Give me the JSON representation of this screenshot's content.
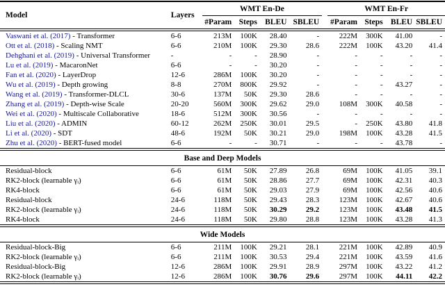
{
  "table": {
    "link_color": "#17178f",
    "header": {
      "col_model": "Model",
      "col_layers": "Layers",
      "group_ende": "WMT En-De",
      "group_enfr": "WMT En-Fr",
      "subcols": [
        "#Param",
        "Steps",
        "BLEU",
        "SBLEU"
      ]
    },
    "sections": [
      {
        "name": null,
        "rows": [
          {
            "cite": "Vaswani et al. (2017)",
            "rest": " - Transformer",
            "layers": "6-6",
            "vals": [
              "213M",
              "100K",
              "28.40",
              "-",
              "222M",
              "300K",
              "41.00",
              "-"
            ]
          },
          {
            "cite": "Ott et al. (2018)",
            "rest": " - Scaling NMT",
            "layers": "6-6",
            "vals": [
              "210M",
              "100K",
              "29.30",
              "28.6",
              "222M",
              "100K",
              "43.20",
              "41.4"
            ]
          },
          {
            "cite": "Dehghani et al. (2019)",
            "rest": " - Universal Transformer",
            "layers": "-",
            "vals": [
              "-",
              "-",
              "28.90",
              "-",
              "-",
              "-",
              "-",
              "-"
            ]
          },
          {
            "cite": "Lu et al. (2019)",
            "rest": " - MacaronNet",
            "layers": "6-6",
            "vals": [
              "-",
              "-",
              "30.20",
              "-",
              "-",
              "-",
              "-",
              "-"
            ]
          },
          {
            "cite": "Fan et al. (2020)",
            "rest": " - LayerDrop",
            "layers": "12-6",
            "vals": [
              "286M",
              "100K",
              "30.20",
              "-",
              "-",
              "-",
              "-",
              "-"
            ]
          },
          {
            "cite": "Wu et al. (2019)",
            "rest": " - Depth growing",
            "layers": "8-8",
            "vals": [
              "270M",
              "800K",
              "29.92",
              "-",
              "-",
              "-",
              "43.27",
              "-"
            ]
          },
          {
            "cite": "Wang et al. (2019)",
            "rest": " - Transformer-DLCL",
            "layers": "30-6",
            "vals": [
              "137M",
              "50K",
              "29.30",
              "28.6",
              "-",
              "-",
              "-",
              "-"
            ]
          },
          {
            "cite": "Zhang et al. (2019)",
            "rest": " - Depth-wise Scale",
            "layers": "20-20",
            "vals": [
              "560M",
              "300K",
              "29.62",
              "29.0",
              "108M",
              "300K",
              "40.58",
              "-"
            ]
          },
          {
            "cite": "Wei et al. (2020)",
            "rest": " - Multiscale Collaborative",
            "layers": "18-6",
            "vals": [
              "512M",
              "300K",
              "30.56",
              "-",
              "-",
              "-",
              "-",
              "-"
            ]
          },
          {
            "cite": "Liu et al. (2020)",
            "rest": " - ADMIN",
            "layers": "60-12",
            "vals": [
              "262M",
              "250K",
              "30.01",
              "29.5",
              "-",
              "250K",
              "43.80",
              "41.8"
            ]
          },
          {
            "cite": "Li et al. (2020)",
            "rest": " - SDT",
            "layers": "48-6",
            "vals": [
              "192M",
              "50K",
              "30.21",
              "29.0",
              "198M",
              "100K",
              "43.28",
              "41.5"
            ]
          },
          {
            "cite": "Zhu et al. (2020)",
            "rest": " - BERT-fused model",
            "layers": "6-6",
            "vals": [
              "-",
              "-",
              "30.71",
              "-",
              "-",
              "-",
              "43.78",
              "-"
            ]
          }
        ]
      },
      {
        "name": "Base and Deep Models",
        "rows": [
          {
            "model": "Residual-block",
            "layers": "6-6",
            "vals": [
              "61M",
              "50K",
              "27.89",
              "26.8",
              "69M",
              "100K",
              "41.05",
              "39.1"
            ]
          },
          {
            "model": "RK2-block (learnable γᵢ)",
            "layers": "6-6",
            "vals": [
              "61M",
              "50K",
              "28.86",
              "27.7",
              "69M",
              "100K",
              "42.31",
              "40.3"
            ]
          },
          {
            "model": "RK4-block",
            "layers": "6-6",
            "vals": [
              "61M",
              "50K",
              "29.03",
              "27.9",
              "69M",
              "100K",
              "42.56",
              "40.6"
            ]
          },
          {
            "model": "Residual-block",
            "layers": "24-6",
            "vals": [
              "118M",
              "50K",
              "29.43",
              "28.3",
              "123M",
              "100K",
              "42.67",
              "40.6"
            ]
          },
          {
            "model": "RK2-block (learnable γᵢ)",
            "layers": "24-6",
            "vals": [
              "118M",
              "50K",
              "30.29",
              "29.2",
              "123M",
              "100K",
              "43.48",
              "41.5"
            ],
            "bold": [
              2,
              3,
              6,
              7
            ]
          },
          {
            "model": "RK4-block",
            "layers": "24-6",
            "vals": [
              "118M",
              "50K",
              "29.80",
              "28.8",
              "123M",
              "100K",
              "43.28",
              "41.3"
            ]
          }
        ]
      },
      {
        "name": "Wide Models",
        "rows": [
          {
            "model": "Residual-block-Big",
            "layers": "6-6",
            "vals": [
              "211M",
              "100K",
              "29.21",
              "28.1",
              "221M",
              "100K",
              "42.89",
              "40.9"
            ]
          },
          {
            "model": "RK2-block (learnable γᵢ)",
            "layers": "6-6",
            "vals": [
              "211M",
              "100K",
              "30.53",
              "29.4",
              "221M",
              "100K",
              "43.59",
              "41.6"
            ]
          },
          {
            "model": "Residual-block-Big",
            "layers": "12-6",
            "vals": [
              "286M",
              "100K",
              "29.91",
              "28.9",
              "297M",
              "100K",
              "43.22",
              "41.2"
            ]
          },
          {
            "model": "RK2-block (learnable γᵢ)",
            "layers": "12-6",
            "vals": [
              "286M",
              "100K",
              "30.76",
              "29.6",
              "297M",
              "100K",
              "44.11",
              "42.2"
            ],
            "bold": [
              2,
              3,
              6,
              7
            ]
          }
        ]
      }
    ]
  }
}
